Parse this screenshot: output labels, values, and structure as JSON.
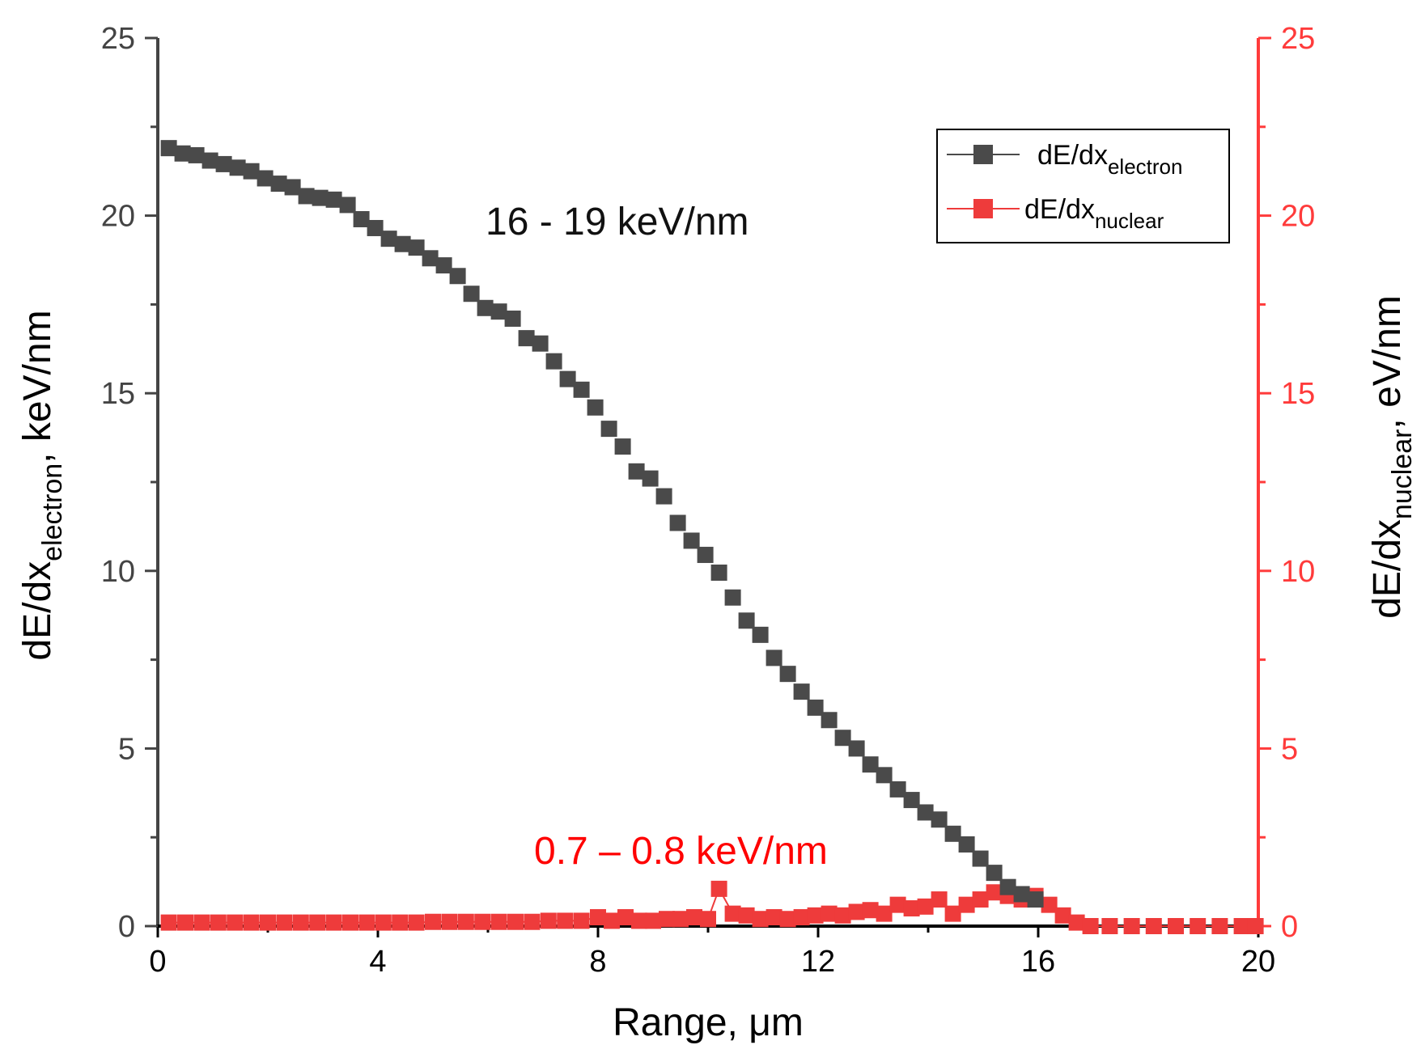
{
  "colors": {
    "electron": "#4a4a4a",
    "nuclear": "#ee3b3b",
    "left_axis": "#444444",
    "right_axis": "#ff3b3b",
    "annot_nuclear": "#ff0000"
  },
  "chart_data": {
    "type": "scatter",
    "xlabel": "Range, μm",
    "ylabel_left": {
      "main": "dE/dx",
      "sub": "electron",
      "tail": ", keV/nm"
    },
    "ylabel_right": {
      "main": "dE/dx",
      "sub": "nuclear",
      "tail": ", eV/nm"
    },
    "xlim": [
      0,
      20
    ],
    "ylim_left": [
      0,
      25
    ],
    "ylim_right": [
      0,
      25
    ],
    "x_ticks": [
      "0",
      "4",
      "8",
      "12",
      "16",
      "20"
    ],
    "y_ticks_left": [
      "0",
      "5",
      "10",
      "15",
      "20",
      "25"
    ],
    "y_ticks_right": [
      "0",
      "5",
      "10",
      "15",
      "20",
      "25"
    ],
    "legend": [
      {
        "main": "dE/dx",
        "sub": "electron"
      },
      {
        "main": "dE/dx",
        "sub": "nuclear"
      }
    ],
    "annotations": [
      "16 - 19 keV/nm",
      "0.7 – 0.8 keV/nm"
    ],
    "series": [
      {
        "name": "dE/dx electron",
        "axis": "left",
        "x": [
          0.2,
          0.45,
          0.7,
          0.95,
          1.2,
          1.45,
          1.7,
          1.95,
          2.2,
          2.45,
          2.7,
          2.95,
          3.2,
          3.45,
          3.7,
          3.95,
          4.2,
          4.45,
          4.7,
          4.95,
          5.2,
          5.45,
          5.7,
          5.95,
          6.2,
          6.45,
          6.7,
          6.95,
          7.2,
          7.45,
          7.7,
          7.95,
          8.2,
          8.45,
          8.7,
          8.95,
          9.2,
          9.45,
          9.7,
          9.95,
          10.2,
          10.45,
          10.7,
          10.95,
          11.2,
          11.45,
          11.7,
          11.95,
          12.2,
          12.45,
          12.7,
          12.95,
          13.2,
          13.45,
          13.7,
          13.95,
          14.2,
          14.45,
          14.7,
          14.95,
          15.2,
          15.45,
          15.7,
          15.95
        ],
        "y": [
          21.9,
          21.75,
          21.7,
          21.55,
          21.45,
          21.35,
          21.25,
          21.05,
          20.9,
          20.8,
          20.55,
          20.5,
          20.45,
          20.3,
          19.9,
          19.65,
          19.35,
          19.2,
          19.1,
          18.8,
          18.6,
          18.3,
          17.8,
          17.4,
          17.3,
          17.1,
          16.55,
          16.4,
          15.9,
          15.4,
          15.1,
          14.6,
          14.0,
          13.5,
          12.8,
          12.6,
          12.1,
          11.35,
          10.85,
          10.45,
          9.95,
          9.25,
          8.6,
          8.2,
          7.55,
          7.1,
          6.6,
          6.15,
          5.8,
          5.3,
          5.0,
          4.55,
          4.25,
          3.85,
          3.55,
          3.2,
          3.0,
          2.6,
          2.3,
          1.9,
          1.5,
          1.1,
          0.9,
          0.75
        ]
      },
      {
        "name": "dE/dx nuclear",
        "axis": "right",
        "x": [
          0.2,
          0.5,
          0.8,
          1.1,
          1.4,
          1.7,
          2.0,
          2.3,
          2.6,
          2.9,
          3.2,
          3.5,
          3.8,
          4.1,
          4.4,
          4.7,
          5.0,
          5.3,
          5.6,
          5.9,
          6.2,
          6.5,
          6.8,
          7.1,
          7.4,
          7.7,
          8.0,
          8.25,
          8.5,
          8.75,
          9.0,
          9.25,
          9.5,
          9.75,
          10.0,
          10.2,
          10.45,
          10.7,
          10.95,
          11.2,
          11.45,
          11.7,
          11.95,
          12.2,
          12.45,
          12.7,
          12.95,
          13.2,
          13.45,
          13.7,
          13.95,
          14.2,
          14.45,
          14.7,
          14.95,
          15.2,
          15.45,
          15.7,
          15.95,
          16.2,
          16.45,
          16.7,
          16.95,
          17.3,
          17.7,
          18.1,
          18.5,
          18.9,
          19.3,
          19.7,
          19.95
        ],
        "y": [
          0.1,
          0.1,
          0.1,
          0.1,
          0.1,
          0.1,
          0.1,
          0.1,
          0.1,
          0.1,
          0.1,
          0.1,
          0.1,
          0.1,
          0.1,
          0.1,
          0.12,
          0.12,
          0.12,
          0.12,
          0.12,
          0.12,
          0.12,
          0.15,
          0.15,
          0.15,
          0.25,
          0.15,
          0.25,
          0.15,
          0.15,
          0.2,
          0.2,
          0.25,
          0.2,
          1.05,
          0.35,
          0.3,
          0.2,
          0.25,
          0.2,
          0.25,
          0.3,
          0.35,
          0.3,
          0.4,
          0.45,
          0.35,
          0.6,
          0.5,
          0.55,
          0.75,
          0.35,
          0.6,
          0.75,
          0.95,
          0.85,
          0.75,
          0.85,
          0.6,
          0.3,
          0.1,
          0.0,
          0.0,
          0.0,
          0.0,
          0.0,
          0.0,
          0.0,
          0.0,
          0.0
        ]
      }
    ]
  }
}
